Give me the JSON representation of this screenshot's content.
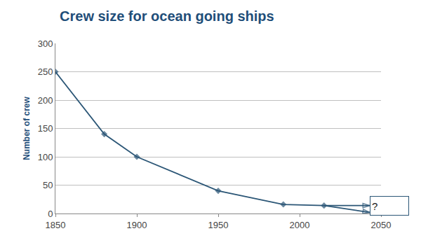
{
  "chart_data": {
    "type": "line",
    "title": "Crew size for ocean going ships",
    "y_label": "Number of crew",
    "x": [
      1850,
      1880,
      1900,
      1950,
      1990,
      2015,
      2043
    ],
    "series": [
      {
        "values": [
          250,
          140,
          100,
          40,
          16,
          14,
          null
        ],
        "color": "#2b5676",
        "marker": "diamond",
        "line_style": "solid"
      },
      {
        "values": [
          null,
          null,
          null,
          null,
          null,
          14,
          14
        ],
        "color": "#2b5676",
        "marker": "arrow",
        "line_style": "solid"
      },
      {
        "values": [
          null,
          null,
          null,
          null,
          null,
          14,
          2
        ],
        "color": "#2b5676",
        "marker": "arrow",
        "line_style": "solid"
      }
    ],
    "xlim": [
      1850,
      2050
    ],
    "xticks": [
      1850,
      1900,
      1950,
      2000,
      2050
    ],
    "ylim": [
      0,
      300
    ],
    "yticks": [
      0,
      50,
      100,
      150,
      200,
      250,
      300
    ],
    "grid": true,
    "annotations": [
      {
        "text": "?",
        "x": 2043,
        "y": 14
      }
    ]
  }
}
